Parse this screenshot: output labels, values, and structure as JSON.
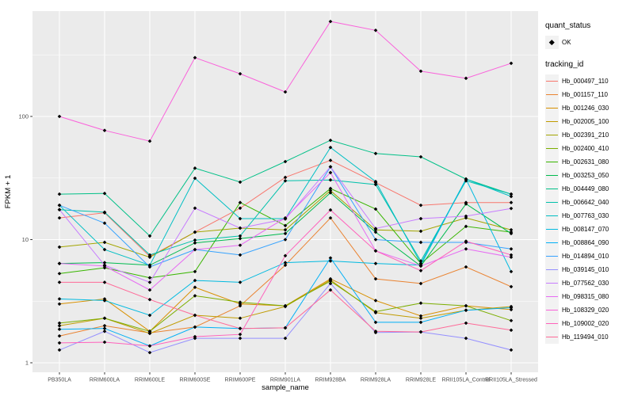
{
  "legend": {
    "quant_status_title": "quant_status",
    "quant_status_items": [
      {
        "label": "OK",
        "symbol": "black-point"
      }
    ],
    "tracking_id_title": "tracking_id"
  },
  "colors": {
    "background": "#FFFFFF",
    "panel_bg": "#EBEBEB",
    "gridline": "#FFFFFF",
    "tick_label": "#4D4D4D",
    "axis_title": "#000000",
    "point": "#000000",
    "legend_key_bg": "#F2F2F2"
  },
  "chart_data": {
    "type": "line",
    "title": "",
    "xlabel": "sample_name",
    "ylabel": "FPKM + 1",
    "y_scale": "log10",
    "y_ticks": [
      1,
      10,
      100
    ],
    "y_minor_gridlines": [
      3.162,
      31.62,
      316.2
    ],
    "ylim": [
      0.84,
      720
    ],
    "grid": "on",
    "legend_position": "right",
    "point_shape": "black-diamond",
    "categories": [
      "PB350LA",
      "RRIM600LA",
      "RRIM600LE",
      "RRIM600SE",
      "RRIM600PE",
      "RRIM901LA",
      "RRIM928BA",
      "RRIM928LA",
      "RRIM928LE",
      "RRII105LA_Control",
      "RRII105LA_Stressed"
    ],
    "series": [
      {
        "name": "Hb_000497_110",
        "color": "#F8766D",
        "values": [
          15,
          16.5,
          7.3,
          11.5,
          18,
          32,
          44,
          29,
          19,
          20,
          20
        ]
      },
      {
        "name": "Hb_001157_110",
        "color": "#EA8331",
        "values": [
          1.65,
          2.0,
          1.75,
          1.95,
          2.9,
          6.2,
          15,
          4.8,
          4.4,
          6.0,
          4.15
        ]
      },
      {
        "name": "Hb_001246_030",
        "color": "#D89000",
        "values": [
          3.0,
          3.3,
          1.8,
          4.1,
          3.0,
          2.9,
          4.8,
          3.2,
          2.4,
          2.9,
          2.7
        ]
      },
      {
        "name": "Hb_002005_100",
        "color": "#C09B00",
        "values": [
          2.0,
          2.3,
          1.73,
          2.43,
          2.3,
          2.86,
          4.7,
          2.55,
          2.3,
          2.67,
          2.86
        ]
      },
      {
        "name": "Hb_002391_210",
        "color": "#A3A500",
        "values": [
          8.7,
          9.5,
          7.2,
          11.5,
          12.4,
          12,
          25,
          12,
          11.7,
          15,
          12
        ]
      },
      {
        "name": "Hb_002400_410",
        "color": "#7CAE00",
        "values": [
          2.1,
          2.3,
          1.8,
          3.5,
          3.1,
          2.9,
          4.6,
          2.6,
          3.05,
          2.9,
          2.2
        ]
      },
      {
        "name": "Hb_002631_080",
        "color": "#39B600",
        "values": [
          5.3,
          5.9,
          4.9,
          5.5,
          20,
          13,
          26,
          17.7,
          6.4,
          12.8,
          11.5
        ]
      },
      {
        "name": "Hb_003253_050",
        "color": "#00BB4E",
        "values": [
          6.4,
          6.5,
          6.2,
          9.4,
          10.2,
          11.2,
          24,
          11.5,
          6.1,
          19.5,
          11.2
        ]
      },
      {
        "name": "Hb_004449_080",
        "color": "#00C087",
        "values": [
          23.4,
          23.7,
          10.7,
          38,
          29.3,
          43,
          64,
          50,
          47,
          31,
          23.4
        ]
      },
      {
        "name": "Hb_006642_040",
        "color": "#00C1AB",
        "values": [
          17.5,
          16.7,
          7.5,
          9.9,
          10.7,
          30,
          30.5,
          28,
          6.7,
          30,
          23.4
        ]
      },
      {
        "name": "Hb_007763_030",
        "color": "#00BFC4",
        "values": [
          19,
          8.3,
          6.2,
          31.5,
          14.8,
          14.8,
          56,
          29.6,
          6.4,
          31,
          22.4
        ]
      },
      {
        "name": "Hb_008147_070",
        "color": "#00BAE0",
        "values": [
          3.3,
          3.2,
          2.43,
          4.66,
          4.5,
          6.5,
          6.7,
          6.4,
          6.2,
          31,
          5.5
        ]
      },
      {
        "name": "Hb_008864_090",
        "color": "#00B0F6",
        "values": [
          1.87,
          1.9,
          1.37,
          1.95,
          1.9,
          1.92,
          7.1,
          2.13,
          2.13,
          2.67,
          2.8
        ]
      },
      {
        "name": "Hb_014894_010",
        "color": "#35A2FF",
        "values": [
          19,
          13.6,
          6.0,
          8.3,
          7.5,
          10,
          39,
          10,
          9.5,
          9.5,
          8.4
        ]
      },
      {
        "name": "Hb_039145_010",
        "color": "#9590FF",
        "values": [
          1.27,
          1.8,
          1.21,
          1.58,
          1.58,
          1.58,
          4.4,
          1.76,
          1.78,
          1.58,
          1.27
        ]
      },
      {
        "name": "Hb_077562_030",
        "color": "#C77CFF",
        "values": [
          17.5,
          6.2,
          4.5,
          18,
          12.4,
          14.7,
          39,
          12.3,
          14.8,
          15.5,
          17.9
        ]
      },
      {
        "name": "Hb_098315_080",
        "color": "#E76BF3",
        "values": [
          6.4,
          6.1,
          3.9,
          8.3,
          9.0,
          15,
          35,
          8.1,
          6.1,
          8.4,
          7.2
        ]
      },
      {
        "name": "Hb_108329_020",
        "color": "#FA62DB",
        "values": [
          100,
          77,
          63,
          300,
          222,
          158,
          590,
          500,
          233,
          204,
          270
        ]
      },
      {
        "name": "Hb_109002_020",
        "color": "#FF62BC",
        "values": [
          1.45,
          1.47,
          1.37,
          1.63,
          1.7,
          7.4,
          17.4,
          8.1,
          5.6,
          9.7,
          7.5
        ]
      },
      {
        "name": "Hb_119494_010",
        "color": "#FF6A98",
        "values": [
          4.5,
          4.5,
          3.26,
          2.43,
          1.9,
          1.92,
          3.9,
          1.8,
          1.78,
          2.1,
          1.84
        ]
      }
    ]
  }
}
